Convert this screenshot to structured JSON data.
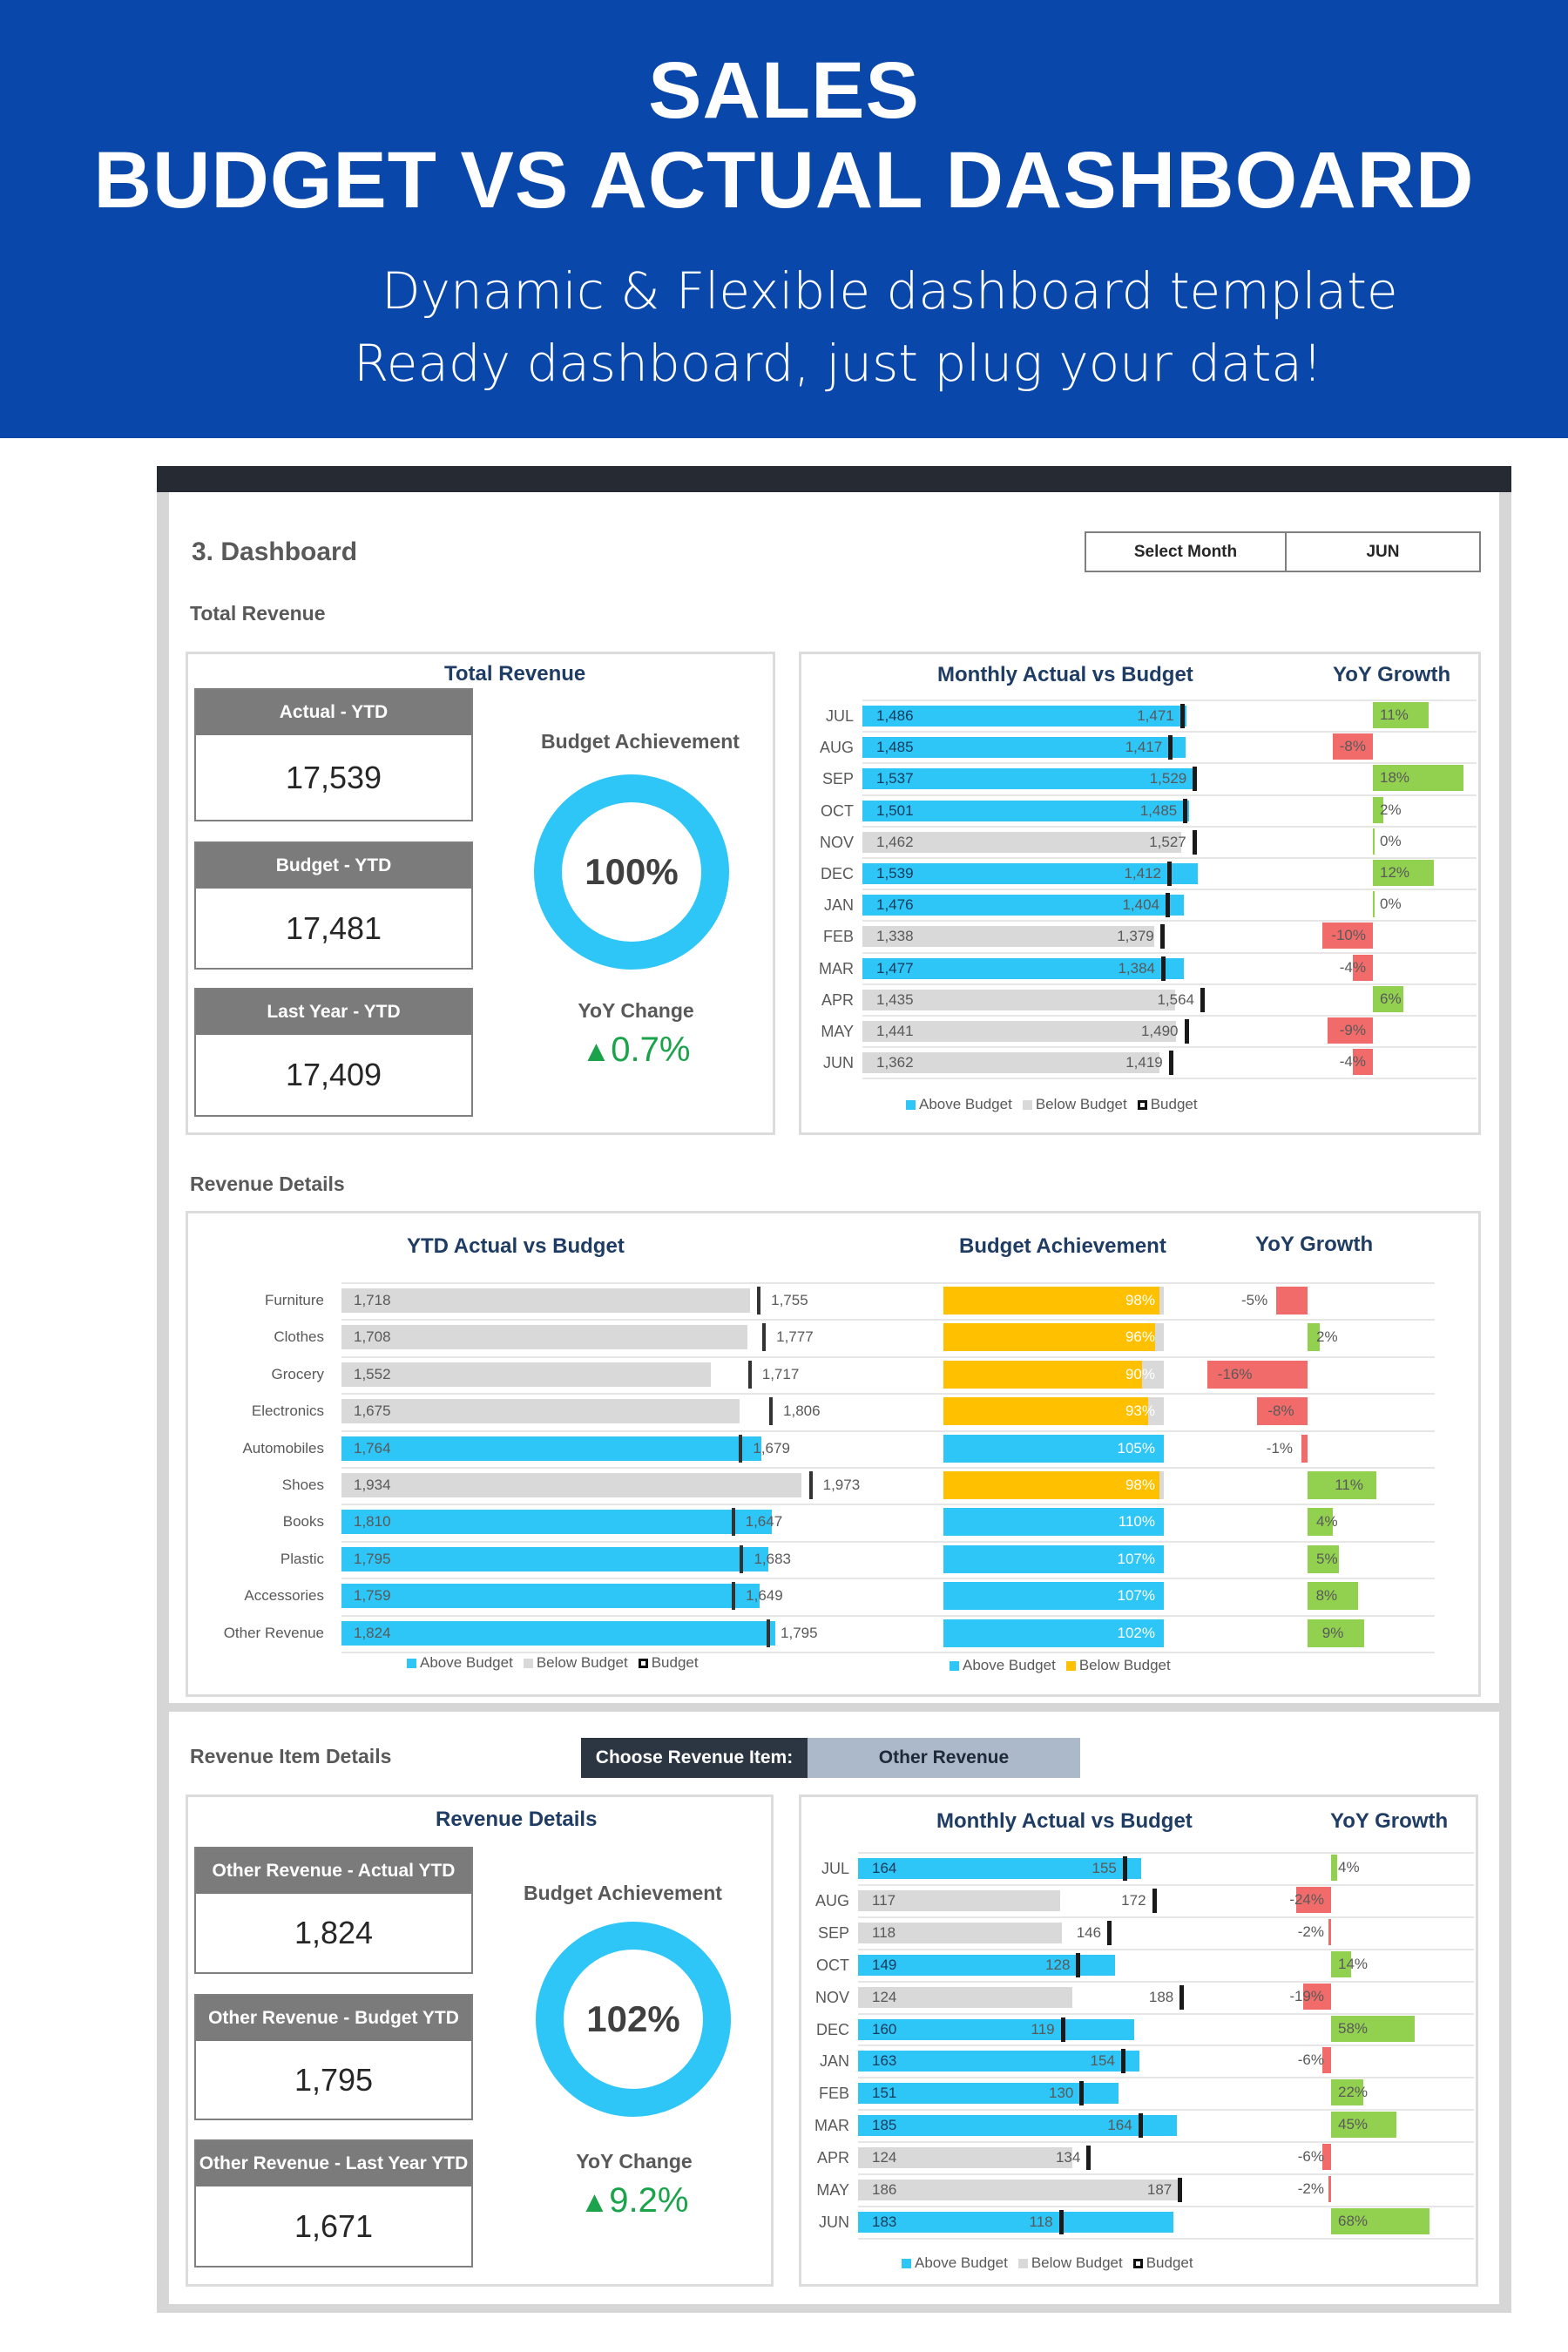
{
  "header": {
    "title_line1": "SALES",
    "title_line2": "BUDGET VS ACTUAL DASHBOARD",
    "subtitle1": "Dynamic & Flexible dashboard template",
    "subtitle2": "Ready dashboard, just plug your data!"
  },
  "dashboard": {
    "title": "3. Dashboard",
    "select_month_label": "Select Month",
    "select_month_value": "JUN",
    "total_revenue_section": "Total Revenue",
    "revenue_details_section": "Revenue Details",
    "revenue_item_section": "Revenue Item Details",
    "choose_item_label": "Choose Revenue Item:",
    "choose_item_value": "Other Revenue"
  },
  "total_panel": {
    "title": "Total Revenue",
    "kpis": [
      {
        "label": "Actual - YTD",
        "value": "17,539"
      },
      {
        "label": "Budget - YTD",
        "value": "17,481"
      },
      {
        "label": "Last Year - YTD",
        "value": "17,409"
      }
    ],
    "achievement_label": "Budget Achievement",
    "achievement_value": "100%",
    "achievement_pct": 100,
    "yoy_label": "YoY Change",
    "yoy_value": "0.7%",
    "yoy_arrow": "▲"
  },
  "item_panel": {
    "title": "Revenue Details",
    "kpis": [
      {
        "label": "Other Revenue - Actual YTD",
        "value": "1,824"
      },
      {
        "label": "Other Revenue - Budget YTD",
        "value": "1,795"
      },
      {
        "label": "Other Revenue - Last Year YTD",
        "value": "1,671"
      }
    ],
    "achievement_label": "Budget Achievement",
    "achievement_value": "102%",
    "achievement_pct": 102,
    "yoy_label": "YoY Change",
    "yoy_value": "9.2%",
    "yoy_arrow": "▲"
  },
  "colors": {
    "header_blue": "#0a47aa",
    "above": "#2ec5f7",
    "below": "#d9d9d9",
    "below_achievement": "#ffc000",
    "positive": "#92d050",
    "negative": "#f26b6b",
    "title_navy": "#1f3c64",
    "yoy_up": "#1aa34a"
  },
  "legends": {
    "above": "Above Budget",
    "below": "Below Budget",
    "budget": "Budget"
  },
  "chart_data": [
    {
      "type": "bar",
      "title": "Monthly Actual vs Budget",
      "yoy_title": "YoY Growth",
      "categories": [
        "JUL",
        "AUG",
        "SEP",
        "OCT",
        "NOV",
        "DEC",
        "JAN",
        "FEB",
        "MAR",
        "APR",
        "MAY",
        "JUN"
      ],
      "series": [
        {
          "name": "Actual",
          "values": [
            1486,
            1485,
            1537,
            1501,
            1462,
            1539,
            1476,
            1338,
            1477,
            1435,
            1441,
            1362
          ]
        },
        {
          "name": "Budget",
          "values": [
            1471,
            1417,
            1529,
            1485,
            1527,
            1412,
            1404,
            1379,
            1384,
            1564,
            1490,
            1419
          ]
        }
      ],
      "yoy": [
        11,
        -8,
        18,
        2,
        0,
        12,
        0,
        -10,
        -4,
        6,
        -9,
        -4
      ]
    },
    {
      "type": "bar",
      "title": "YTD Actual vs Budget",
      "achievement_title": "Budget Achievement",
      "yoy_title": "YoY Growth",
      "categories": [
        "Furniture",
        "Clothes",
        "Grocery",
        "Electronics",
        "Automobiles",
        "Shoes",
        "Books",
        "Plastic",
        "Accessories",
        "Other Revenue"
      ],
      "series": [
        {
          "name": "Actual",
          "values": [
            1718,
            1708,
            1552,
            1675,
            1764,
            1934,
            1810,
            1795,
            1759,
            1824
          ]
        },
        {
          "name": "Budget",
          "values": [
            1755,
            1777,
            1717,
            1806,
            1679,
            1973,
            1647,
            1683,
            1649,
            1795
          ]
        }
      ],
      "achievement": [
        98,
        96,
        90,
        93,
        105,
        98,
        110,
        107,
        107,
        102
      ],
      "yoy": [
        -5,
        2,
        -16,
        -8,
        -1,
        11,
        4,
        5,
        8,
        9
      ]
    },
    {
      "type": "bar",
      "title": "Monthly Actual vs Budget",
      "yoy_title": "YoY Growth",
      "categories": [
        "JUL",
        "AUG",
        "SEP",
        "OCT",
        "NOV",
        "DEC",
        "JAN",
        "FEB",
        "MAR",
        "APR",
        "MAY",
        "JUN"
      ],
      "series": [
        {
          "name": "Actual",
          "values": [
            164,
            117,
            118,
            149,
            124,
            160,
            163,
            151,
            185,
            124,
            186,
            183
          ]
        },
        {
          "name": "Budget",
          "values": [
            155,
            172,
            146,
            128,
            188,
            119,
            154,
            130,
            164,
            134,
            187,
            118
          ]
        }
      ],
      "yoy": [
        4,
        -24,
        -2,
        14,
        -19,
        58,
        -6,
        22,
        45,
        -6,
        -2,
        68
      ]
    }
  ]
}
